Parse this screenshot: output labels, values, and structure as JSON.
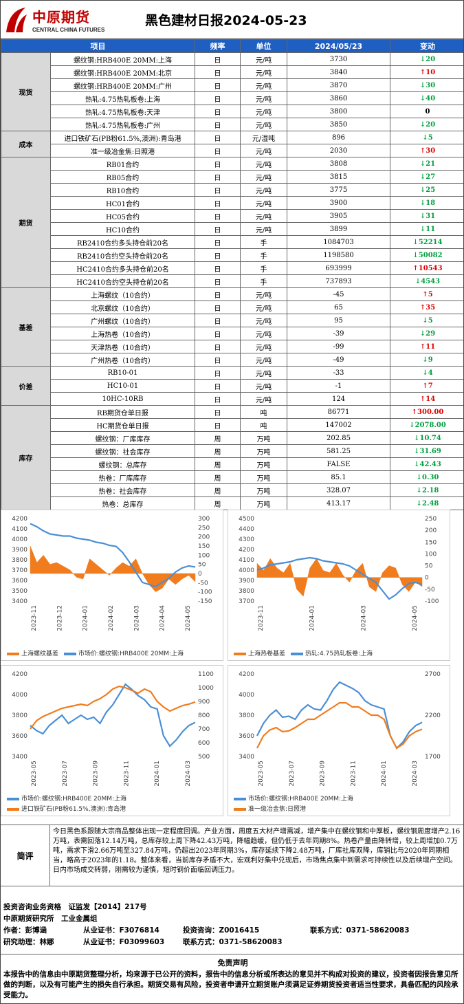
{
  "header": {
    "company_cn": "中原期货",
    "company_en": "CENTRAL CHINA FUTURES",
    "title": "黑色建材日报2024-05-23"
  },
  "table": {
    "columns": [
      "项目",
      "频率",
      "单位",
      "2024/05/23",
      "变动"
    ],
    "sections": [
      {
        "name": "现货",
        "rows": [
          {
            "item": "螺纹钢:HRB400E 20MM:上海",
            "freq": "日",
            "unit": "元/吨",
            "value": "3730",
            "dir": "down",
            "change": "20"
          },
          {
            "item": "螺纹钢:HRB400E 20MM:北京",
            "freq": "日",
            "unit": "元/吨",
            "value": "3840",
            "dir": "up",
            "change": "10"
          },
          {
            "item": "螺纹钢:HRB400E 20MM:广州",
            "freq": "日",
            "unit": "元/吨",
            "value": "3870",
            "dir": "down",
            "change": "30"
          },
          {
            "item": "热轧:4.75热轧板卷:上海",
            "freq": "日",
            "unit": "元/吨",
            "value": "3860",
            "dir": "down",
            "change": "40"
          },
          {
            "item": "热轧:4.75热轧板卷:天津",
            "freq": "日",
            "unit": "元/吨",
            "value": "3800",
            "dir": "flat",
            "change": "0"
          },
          {
            "item": "热轧:4.75热轧板卷:广州",
            "freq": "日",
            "unit": "元/吨",
            "value": "3850",
            "dir": "down",
            "change": "20"
          }
        ]
      },
      {
        "name": "成本",
        "rows": [
          {
            "item": "进口铁矿石(PB粉61.5%,澳洲):青岛港",
            "freq": "日",
            "unit": "元/湿吨",
            "value": "896",
            "dir": "down",
            "change": "5"
          },
          {
            "item": "准一级冶金焦:日照港",
            "freq": "日",
            "unit": "元/吨",
            "value": "2030",
            "dir": "up",
            "change": "30"
          }
        ]
      },
      {
        "name": "期货",
        "rows": [
          {
            "item": "RB01合约",
            "freq": "日",
            "unit": "元/吨",
            "value": "3808",
            "dir": "down",
            "change": "21"
          },
          {
            "item": "RB05合约",
            "freq": "日",
            "unit": "元/吨",
            "value": "3815",
            "dir": "down",
            "change": "27"
          },
          {
            "item": "RB10合约",
            "freq": "日",
            "unit": "元/吨",
            "value": "3775",
            "dir": "down",
            "change": "25"
          },
          {
            "item": "HC01合约",
            "freq": "日",
            "unit": "元/吨",
            "value": "3900",
            "dir": "down",
            "change": "18"
          },
          {
            "item": "HC05合约",
            "freq": "日",
            "unit": "元/吨",
            "value": "3905",
            "dir": "down",
            "change": "31"
          },
          {
            "item": "HC10合约",
            "freq": "日",
            "unit": "元/吨",
            "value": "3899",
            "dir": "down",
            "change": "11"
          },
          {
            "item": "RB2410合约多头持仓前20名",
            "freq": "日",
            "unit": "手",
            "value": "1084703",
            "dir": "down",
            "change": "52214"
          },
          {
            "item": "RB2410合约空头持仓前20名",
            "freq": "日",
            "unit": "手",
            "value": "1198580",
            "dir": "down",
            "change": "50082"
          },
          {
            "item": "HC2410合约多头持仓前20名",
            "freq": "日",
            "unit": "手",
            "value": "693999",
            "dir": "up",
            "change": "10543"
          },
          {
            "item": "HC2410合约空头持仓前20名",
            "freq": "日",
            "unit": "手",
            "value": "737893",
            "dir": "down",
            "change": "4543"
          }
        ]
      },
      {
        "name": "基差",
        "rows": [
          {
            "item": "上海螺纹（10合约）",
            "freq": "日",
            "unit": "元/吨",
            "value": "-45",
            "dir": "up",
            "change": "5"
          },
          {
            "item": "北京螺纹（10合约）",
            "freq": "日",
            "unit": "元/吨",
            "value": "65",
            "dir": "up",
            "change": "35"
          },
          {
            "item": "广州螺纹（10合约）",
            "freq": "日",
            "unit": "元/吨",
            "value": "95",
            "dir": "down",
            "change": "5"
          },
          {
            "item": "上海热卷（10合约）",
            "freq": "日",
            "unit": "元/吨",
            "value": "-39",
            "dir": "down",
            "change": "29"
          },
          {
            "item": "天津热卷（10合约）",
            "freq": "日",
            "unit": "元/吨",
            "value": "-99",
            "dir": "up",
            "change": "11"
          },
          {
            "item": "广州热卷（10合约）",
            "freq": "日",
            "unit": "元/吨",
            "value": "-49",
            "dir": "down",
            "change": "9"
          }
        ]
      },
      {
        "name": "价差",
        "rows": [
          {
            "item": "RB10-01",
            "freq": "日",
            "unit": "元/吨",
            "value": "-33",
            "dir": "down",
            "change": "4"
          },
          {
            "item": "HC10-01",
            "freq": "日",
            "unit": "元/吨",
            "value": "-1",
            "dir": "up",
            "change": "7"
          },
          {
            "item": "10HC-10RB",
            "freq": "日",
            "unit": "元/吨",
            "value": "124",
            "dir": "up",
            "change": "14"
          }
        ]
      },
      {
        "name": "库存",
        "rows": [
          {
            "item": "RB期货仓单日报",
            "freq": "日",
            "unit": "吨",
            "value": "86771",
            "dir": "up",
            "change": "300.00"
          },
          {
            "item": "HC期货仓单日报",
            "freq": "日",
            "unit": "吨",
            "value": "147002",
            "dir": "down",
            "change": "2078.00"
          },
          {
            "item": "螺纹钢：厂库库存",
            "freq": "周",
            "unit": "万吨",
            "value": "202.85",
            "dir": "down",
            "change": "10.74"
          },
          {
            "item": "螺纹钢：社会库存",
            "freq": "周",
            "unit": "万吨",
            "value": "581.25",
            "dir": "down",
            "change": "31.69"
          },
          {
            "item": "螺纹钢：总库存",
            "freq": "周",
            "unit": "万吨",
            "value": "FALSE",
            "dir": "down",
            "change": "42.43"
          },
          {
            "item": "热卷：厂库库存",
            "freq": "周",
            "unit": "万吨",
            "value": "85.1",
            "dir": "down",
            "change": "0.30"
          },
          {
            "item": "热卷：社会库存",
            "freq": "周",
            "unit": "万吨",
            "value": "328.07",
            "dir": "down",
            "change": "2.18"
          },
          {
            "item": "热卷：总库存",
            "freq": "周",
            "unit": "万吨",
            "value": "413.17",
            "dir": "down",
            "change": "2.48"
          }
        ]
      }
    ]
  },
  "chart_data": [
    {
      "type": "line",
      "left_ticks": [
        "4200",
        "4100",
        "4000",
        "3900",
        "3800",
        "3700",
        "3600",
        "3500",
        "3400"
      ],
      "right_ticks": [
        "300",
        "250",
        "200",
        "150",
        "100",
        "50",
        "0",
        "-50",
        "-100",
        "-150"
      ],
      "x_ticks": [
        "2023-11",
        "2023-12",
        "2024-01",
        "2024-02",
        "2024-03",
        "2024-04",
        "2024-05"
      ],
      "series": [
        {
          "name": "上海螺纹基差",
          "kind": "area",
          "axis": "right",
          "color": "#f07c1e",
          "values": [
            150,
            60,
            100,
            50,
            60,
            40,
            20,
            -20,
            -30,
            80,
            50,
            20,
            -10,
            30,
            60,
            40,
            80,
            0,
            -60,
            -100,
            -80,
            -30,
            -60,
            -30,
            -10,
            -45
          ]
        },
        {
          "name": "市场价:螺纹钢:HRB400E 20MM:上海",
          "kind": "line",
          "axis": "left",
          "color": "#4a8fd6",
          "values": [
            4150,
            4120,
            4080,
            4050,
            4040,
            4030,
            4030,
            4010,
            4000,
            3990,
            3970,
            3960,
            3940,
            3930,
            3870,
            3780,
            3680,
            3580,
            3560,
            3540,
            3580,
            3620,
            3680,
            3720,
            3740,
            3730
          ]
        }
      ]
    },
    {
      "type": "line",
      "left_ticks": [
        "4500",
        "4400",
        "4300",
        "4200",
        "4100",
        "4000",
        "3900",
        "3800",
        "3700"
      ],
      "right_ticks": [
        "250",
        "200",
        "150",
        "100",
        "50",
        "0",
        "-50",
        "-100"
      ],
      "x_ticks": [
        "2023-11",
        "2024-01",
        "2024-03",
        "2024-05"
      ],
      "series": [
        {
          "name": "上海热卷基差",
          "kind": "area",
          "axis": "right",
          "color": "#f07c1e",
          "values": [
            60,
            30,
            80,
            40,
            20,
            60,
            -50,
            -80,
            40,
            80,
            30,
            20,
            60,
            10,
            -20,
            30,
            60,
            -40,
            -60,
            20,
            50,
            40,
            -30,
            -60,
            -20,
            -39
          ]
        },
        {
          "name": "热轧:4.75热轧板卷:上海",
          "kind": "line",
          "axis": "left",
          "color": "#4a8fd6",
          "values": [
            4000,
            4020,
            4050,
            4060,
            4070,
            4080,
            4100,
            4110,
            4120,
            4110,
            4090,
            4080,
            4070,
            4060,
            4040,
            4000,
            3960,
            3920,
            3880,
            3800,
            3720,
            3760,
            3820,
            3870,
            3880,
            3860
          ]
        }
      ]
    },
    {
      "type": "line",
      "left_ticks": [
        "4200",
        "4000",
        "3800",
        "3600",
        "3400"
      ],
      "right_ticks": [
        "1100",
        "1000",
        "900",
        "800",
        "700",
        "600",
        "500"
      ],
      "x_ticks": [
        "2023-05",
        "2023-07",
        "2023-09",
        "2023-11",
        "2024-01",
        "2024-03"
      ],
      "series": [
        {
          "name": "市场价:螺纹钢:HRB400E 20MM:上海",
          "kind": "line",
          "axis": "left",
          "color": "#4a8fd6",
          "values": [
            3700,
            3650,
            3620,
            3700,
            3750,
            3800,
            3720,
            3760,
            3800,
            3760,
            3780,
            3720,
            3830,
            3900,
            4000,
            4100,
            4050,
            3990,
            3950,
            3880,
            3860,
            3600,
            3500,
            3560,
            3640,
            3700,
            3730
          ]
        },
        {
          "name": "进口铁矿石(PB粉61.5%,澳洲):青岛港",
          "kind": "line",
          "axis": "right",
          "color": "#f07c1e",
          "values": [
            700,
            760,
            790,
            810,
            830,
            850,
            860,
            870,
            880,
            870,
            900,
            920,
            950,
            990,
            1010,
            1000,
            980,
            960,
            990,
            970,
            900,
            860,
            830,
            850,
            870,
            880,
            896
          ]
        }
      ]
    },
    {
      "type": "line",
      "left_ticks": [
        "4200",
        "4000",
        "3800",
        "3600",
        "3400"
      ],
      "right_ticks": [
        "2700",
        "2200",
        "1700"
      ],
      "x_ticks": [
        "2023-05",
        "2023-07",
        "2023-09",
        "2023-11",
        "2024-01",
        "2024-03"
      ],
      "series": [
        {
          "name": "市场价:螺纹钢:HRB400E 20MM:上海",
          "kind": "line",
          "axis": "left",
          "color": "#4a8fd6",
          "values": [
            3600,
            3720,
            3800,
            3850,
            3780,
            3790,
            3760,
            3850,
            3900,
            3860,
            3850,
            3940,
            4050,
            4120,
            4090,
            4060,
            4020,
            3940,
            3900,
            3880,
            3860,
            3600,
            3480,
            3540,
            3640,
            3700,
            3730
          ]
        },
        {
          "name": "准一级冶金焦:日照港",
          "kind": "line",
          "axis": "right",
          "color": "#f07c1e",
          "values": [
            1800,
            1950,
            2020,
            2050,
            2000,
            2010,
            2050,
            2100,
            2150,
            2150,
            2200,
            2250,
            2300,
            2350,
            2350,
            2300,
            2300,
            2250,
            2200,
            2200,
            2150,
            1950,
            1800,
            1850,
            1950,
            2000,
            2030
          ]
        }
      ]
    }
  ],
  "review": {
    "label": "简评",
    "text": "今日黑色系跟随大宗商品整体出现一定程度回调。产业方面，周度五大材产增需减，增产集中在螺纹钢和中厚板，螺纹钢周度增产2.16万吨，表需回落12.14万吨，总库存较上周下降42.43万吨，降幅趋缓，但仍低于去年同期8%。热卷产量由降转增，较上周增加0.7万吨，需求下滑2.66万吨至327.84万吨，仍超出2023年同期3%，库存延续下降2.48万吨，厂库社库双降，库销比与2020年同期相当，略高于2023年的1.18。整体来看，当前库存矛盾不大，宏观利好集中兑现后，市场焦点集中到需求可持续性以及后续增产空间。日内市场成交转弱，刚需较为谨慎，短时钢价面临回调压力。"
  },
  "authors": {
    "line1": "投资咨询业务资格　证监发【2014】217号",
    "line2": "中原期货研究所　工业金属组",
    "author": "作者：彭博涵",
    "author_cert": "从业证书：F3076814",
    "advisor": "投资咨询：Z0016415",
    "contact1": "联系方式：0371-58620083",
    "assistant": "研究助理：林娜",
    "assistant_cert": "从业证书：F03099603",
    "contact2": "联系方式：0371-58620083"
  },
  "disclaimer": {
    "title": "免责声明",
    "text": "本报告中的信息由中原期货整理分析，均来源于已公开的资料，报告中的信息分析或所表达的意见并不构成对投资的建议，投资者因报告意见所做的判断，以及有可能产生的损失自行承担。期货交易有风险，投资者申请开立期货账户须满足证券期货投资者适当性要求，具备匹配的风险承受能力。"
  }
}
